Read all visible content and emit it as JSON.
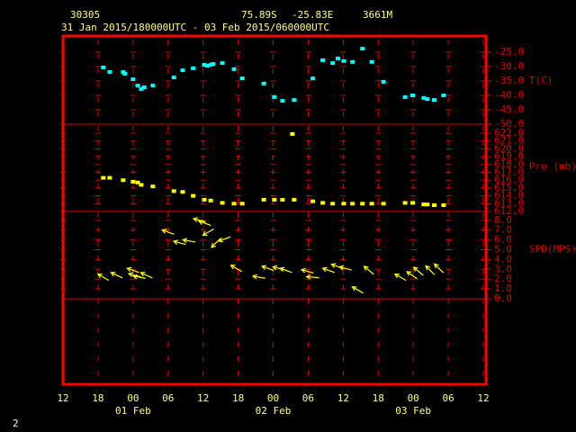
{
  "chart_data": {
    "type": "multi-panel",
    "station": "30305",
    "latitude": "75.89S",
    "longitude": "-25.83E",
    "elevation": "3661M",
    "period": "31 Jan 2015/180000UTC - 03 Feb 2015/060000UTC",
    "page_number": "2",
    "xlim": [
      0,
      72
    ],
    "xticks": [
      {
        "value": 0,
        "label": "12"
      },
      {
        "value": 6,
        "label": "18"
      },
      {
        "value": 12,
        "label": "00"
      },
      {
        "value": 18,
        "label": "06"
      },
      {
        "value": 24,
        "label": "12"
      },
      {
        "value": 30,
        "label": "18"
      },
      {
        "value": 36,
        "label": "00"
      },
      {
        "value": 42,
        "label": "06"
      },
      {
        "value": 48,
        "label": "12"
      },
      {
        "value": 54,
        "label": "18"
      },
      {
        "value": 60,
        "label": "00"
      },
      {
        "value": 66,
        "label": "06"
      },
      {
        "value": 72,
        "label": "12"
      }
    ],
    "date_labels": [
      {
        "value": 12,
        "label": "01 Feb"
      },
      {
        "value": 36,
        "label": "02 Feb"
      },
      {
        "value": 60,
        "label": "03 Feb"
      }
    ],
    "panels": [
      {
        "type": "scatter",
        "label": "T(C)",
        "color": "#00ffff",
        "ylim": [
          -50,
          -19.4
        ],
        "yticks": [
          {
            "value": -25,
            "label": "-25.0"
          },
          {
            "value": -30,
            "label": "-30.0"
          },
          {
            "value": -35,
            "label": "-35.0"
          },
          {
            "value": -40,
            "label": "-40.0"
          },
          {
            "value": -45,
            "label": "-45.0"
          },
          {
            "value": -50,
            "label": "-50.0"
          }
        ],
        "x": [
          6.9,
          8.0,
          10.3,
          10.6,
          12.0,
          12.8,
          13.4,
          13.9,
          15.4,
          19.0,
          20.5,
          22.3,
          24.2,
          24.7,
          25.3,
          25.7,
          27.3,
          29.3,
          30.7,
          34.4,
          36.2,
          37.6,
          39.6,
          42.8,
          44.5,
          46.2,
          47.1,
          48.1,
          49.6,
          51.3,
          52.9,
          54.9,
          58.6,
          59.9,
          61.8,
          62.4,
          63.6,
          65.2
        ],
        "values": [
          -30.3,
          -31.9,
          -31.9,
          -32.5,
          -34.4,
          -36.6,
          -37.8,
          -37.2,
          -36.6,
          -33.8,
          -31.3,
          -30.6,
          -29.4,
          -29.7,
          -29.4,
          -29.1,
          -28.8,
          -30.9,
          -34.1,
          -35.9,
          -40.6,
          -41.9,
          -41.6,
          -34.1,
          -27.8,
          -28.8,
          -27.2,
          -28.1,
          -28.4,
          -23.8,
          -28.4,
          -35.3,
          -40.6,
          -40.0,
          -40.9,
          -41.3,
          -41.6,
          -40.0
        ]
      },
      {
        "type": "scatter",
        "label": "Pre (mb)",
        "color": "#ffff00",
        "ylim": [
          612,
          623.15
        ],
        "yticks": [
          {
            "value": 612,
            "label": "612.0"
          },
          {
            "value": 613,
            "label": "613.0"
          },
          {
            "value": 614,
            "label": "614.0"
          },
          {
            "value": 615,
            "label": "615.0"
          },
          {
            "value": 616,
            "label": "616.0"
          },
          {
            "value": 617,
            "label": "617.0"
          },
          {
            "value": 618,
            "label": "618.0"
          },
          {
            "value": 619,
            "label": "619.0"
          },
          {
            "value": 620,
            "label": "620.0"
          },
          {
            "value": 621,
            "label": "621.0"
          },
          {
            "value": 622,
            "label": "622.0"
          }
        ],
        "x": [
          6.9,
          8.0,
          10.3,
          12.0,
          12.8,
          13.4,
          15.4,
          19.0,
          20.5,
          22.3,
          24.2,
          25.3,
          27.3,
          29.3,
          30.7,
          34.4,
          36.2,
          37.6,
          39.6,
          39.3,
          42.8,
          44.5,
          46.2,
          48.1,
          49.6,
          51.3,
          52.9,
          54.9,
          58.6,
          59.9,
          61.8,
          62.4,
          63.6,
          65.2
        ],
        "values": [
          616.3,
          616.3,
          616.0,
          615.8,
          615.7,
          615.4,
          615.2,
          614.6,
          614.5,
          614.0,
          613.5,
          613.4,
          613.1,
          613.0,
          613.0,
          613.5,
          613.5,
          613.5,
          613.5,
          621.9,
          613.3,
          613.1,
          613.0,
          613.0,
          613.0,
          613.0,
          613.0,
          613.0,
          613.1,
          613.1,
          612.9,
          612.9,
          612.8,
          612.8
        ]
      },
      {
        "type": "vector",
        "label": "SPD(MPS)",
        "color": "#ffff00",
        "ylim": [
          0,
          8.9
        ],
        "yticks": [
          {
            "value": 0,
            "label": "0.0"
          },
          {
            "value": 1,
            "label": "1.0"
          },
          {
            "value": 2,
            "label": "2.0"
          },
          {
            "value": 3,
            "label": "3.0"
          },
          {
            "value": 4,
            "label": "4.0"
          },
          {
            "value": 5,
            "label": "5.0"
          },
          {
            "value": 6,
            "label": "6.0"
          },
          {
            "value": 7,
            "label": "7.0"
          },
          {
            "value": 8,
            "label": "8.0"
          }
        ],
        "x": [
          6.9,
          9.2,
          12.0,
          12.3,
          13.1,
          14.3,
          18.0,
          20.0,
          21.6,
          23.4,
          24.3,
          24.9,
          26.2,
          27.7,
          29.7,
          33.6,
          35.1,
          37.0,
          38.2,
          41.9,
          42.8,
          45.5,
          47.0,
          48.4,
          50.5,
          52.4,
          57.8,
          59.8,
          60.9,
          62.9,
          64.4
        ],
        "values": [
          2.2,
          2.4,
          2.9,
          2.4,
          2.2,
          2.4,
          6.8,
          5.7,
          5.9,
          8.0,
          7.7,
          6.8,
          5.7,
          6.1,
          3.1,
          2.2,
          3.1,
          3.1,
          2.9,
          2.8,
          2.2,
          2.9,
          3.3,
          3.1,
          0.9,
          2.9,
          2.2,
          2.4,
          2.8,
          2.9,
          3.1
        ],
        "directions": [
          150,
          155,
          160,
          165,
          170,
          155,
          160,
          165,
          170,
          165,
          160,
          210,
          225,
          200,
          150,
          170,
          160,
          165,
          160,
          165,
          175,
          160,
          160,
          165,
          150,
          140,
          150,
          145,
          140,
          135,
          135
        ]
      }
    ]
  }
}
